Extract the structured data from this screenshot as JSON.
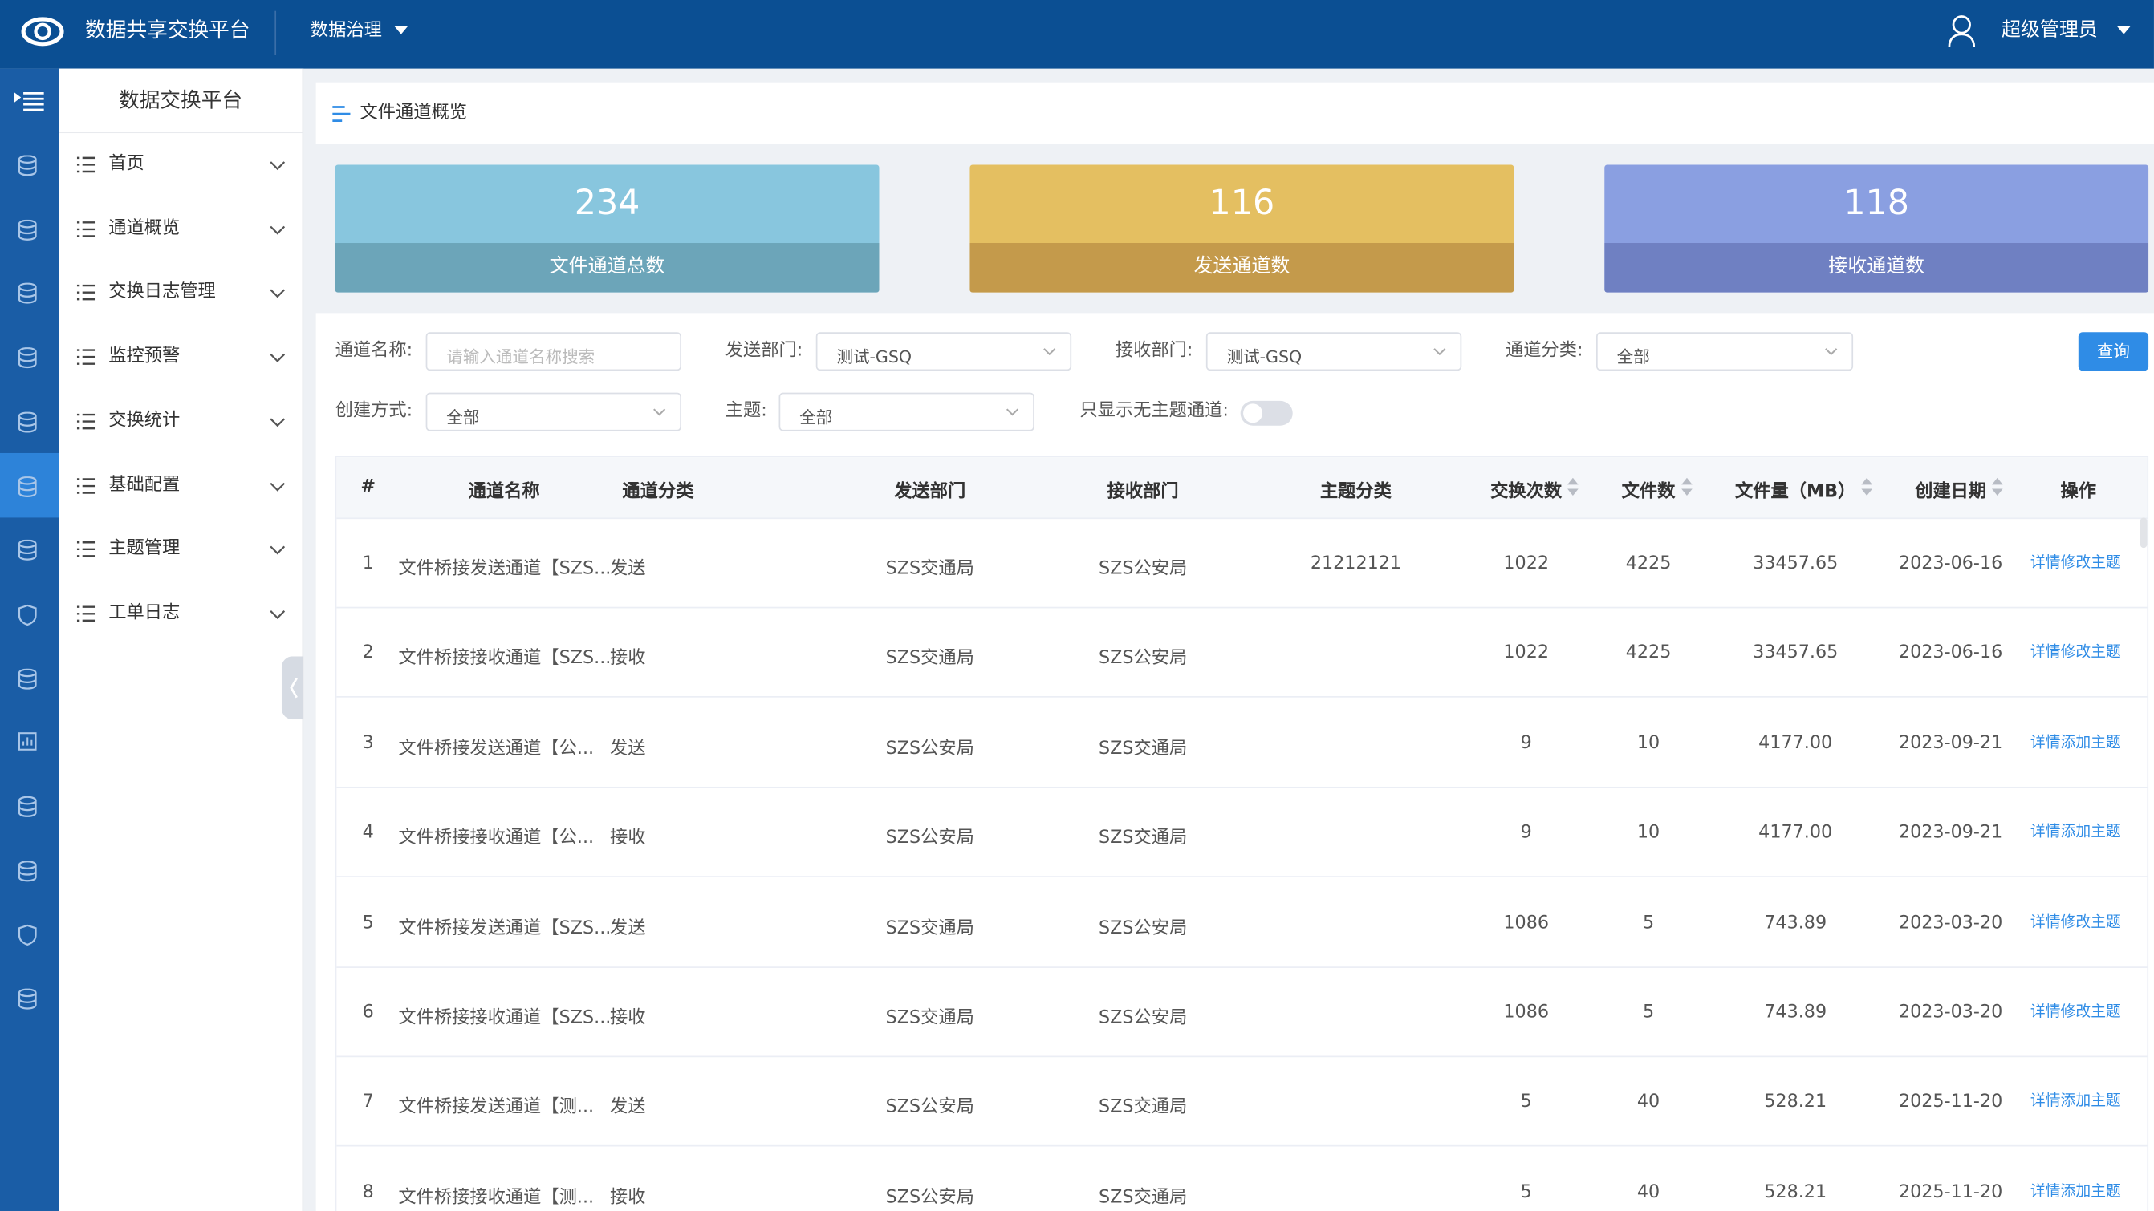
{
  "header": {
    "brand": "数据共享交换平台",
    "menu": "数据治理",
    "user": "超级管理员"
  },
  "sidebar": {
    "title": "数据交换平台",
    "items": [
      "首页",
      "通道概览",
      "交换日志管理",
      "监控预警",
      "交换统计",
      "基础配置",
      "主题管理",
      "工单日志"
    ]
  },
  "breadcrumb": "文件通道概览",
  "stats": [
    {
      "value": 234,
      "label": "文件通道总数"
    },
    {
      "value": 116,
      "label": "发送通道数"
    },
    {
      "value": 118,
      "label": "接收通道数"
    }
  ],
  "filters": {
    "channel_name": {
      "label": "通道名称:",
      "placeholder": "请输入通道名称搜索"
    },
    "send_dept": {
      "label": "发送部门:",
      "value": "测试-GSQ"
    },
    "recv_dept": {
      "label": "接收部门:",
      "value": "测试-GSQ"
    },
    "category": {
      "label": "通道分类:",
      "value": "全部"
    },
    "create_mode": {
      "label": "创建方式:",
      "value": "全部"
    },
    "topic": {
      "label": "主题:",
      "value": "全部"
    },
    "no_topic_only": {
      "label": "只显示无主题通道:"
    },
    "search_button": "查询"
  },
  "table": {
    "columns": [
      "#",
      "通道名称",
      "通道分类",
      "发送部门",
      "接收部门",
      "主题分类",
      "交换次数",
      "文件数",
      "文件量（MB）",
      "创建日期",
      "操作"
    ],
    "rows": [
      [
        "1",
        "文件桥接发送通道【SZS...",
        "发送",
        "SZS交通局",
        "SZS公安局",
        "21212121",
        "1022",
        "4225",
        "33457.65",
        "2023-06-16",
        [
          "详情",
          "修改主题"
        ]
      ],
      [
        "2",
        "文件桥接接收通道【SZS...",
        "接收",
        "SZS交通局",
        "SZS公安局",
        null,
        "1022",
        "4225",
        "33457.65",
        "2023-06-16",
        [
          "详情",
          "修改主题"
        ]
      ],
      [
        "3",
        "文件桥接发送通道【公...",
        "发送",
        "SZS公安局",
        "SZS交通局",
        null,
        "9",
        "10",
        "4177.00",
        "2023-09-21",
        [
          "详情",
          "添加主题"
        ]
      ],
      [
        "4",
        "文件桥接接收通道【公...",
        "接收",
        "SZS公安局",
        "SZS交通局",
        null,
        "9",
        "10",
        "4177.00",
        "2023-09-21",
        [
          "详情",
          "添加主题"
        ]
      ],
      [
        "5",
        "文件桥接发送通道【SZS...",
        "发送",
        "SZS交通局",
        "SZS公安局",
        null,
        "1086",
        "5",
        "743.89",
        "2023-03-20",
        [
          "详情",
          "修改主题"
        ]
      ],
      [
        "6",
        "文件桥接接收通道【SZS...",
        "接收",
        "SZS交通局",
        "SZS公安局",
        null,
        "1086",
        "5",
        "743.89",
        "2023-03-20",
        [
          "详情",
          "修改主题"
        ]
      ],
      [
        "7",
        "文件桥接发送通道【测...",
        "发送",
        "SZS公安局",
        "SZS交通局",
        null,
        "5",
        "40",
        "528.21",
        "2025-11-20",
        [
          "详情",
          "添加主题"
        ]
      ],
      [
        "8",
        "文件桥接接收通道【测...",
        "接收",
        "SZS公安局",
        "SZS交通局",
        null,
        "5",
        "40",
        "528.21",
        "2025-11-20",
        [
          "详情",
          "添加主题"
        ]
      ]
    ]
  }
}
